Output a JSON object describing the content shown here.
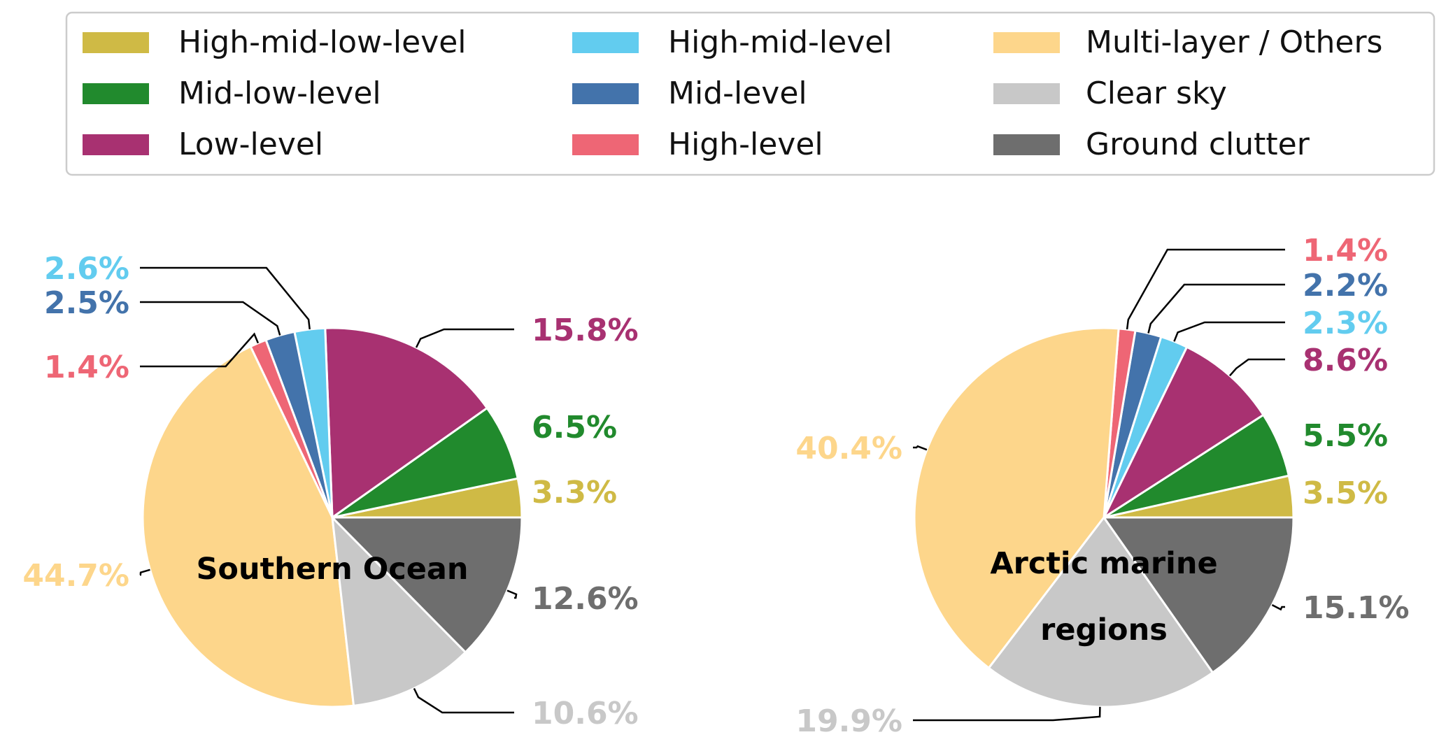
{
  "legend": {
    "items": [
      {
        "key": "hml",
        "label": "High-mid-low-level",
        "color": "#CFBA45"
      },
      {
        "key": "hm",
        "label": "High-mid-level",
        "color": "#62CCEF"
      },
      {
        "key": "multi",
        "label": "Multi-layer / Others",
        "color": "#FDD68B"
      },
      {
        "key": "ml",
        "label": "Mid-low-level",
        "color": "#218A2D"
      },
      {
        "key": "m",
        "label": "Mid-level",
        "color": "#4373AB"
      },
      {
        "key": "clear",
        "label": "Clear sky",
        "color": "#C8C8C8"
      },
      {
        "key": "l",
        "label": "Low-level",
        "color": "#A83171"
      },
      {
        "key": "h",
        "label": "High-level",
        "color": "#EE6675"
      },
      {
        "key": "ground",
        "label": "Ground clutter",
        "color": "#6E6E6E"
      }
    ]
  },
  "chart_data": [
    {
      "type": "pie",
      "title": "Southern Ocean",
      "title_lines": [
        "Southern Ocean"
      ],
      "start_angle_deg": 0,
      "direction": "counterclockwise",
      "slices": [
        {
          "key": "hml",
          "value": 3.3,
          "label": "3.3%"
        },
        {
          "key": "ml",
          "value": 6.5,
          "label": "6.5%"
        },
        {
          "key": "l",
          "value": 15.8,
          "label": "15.8%"
        },
        {
          "key": "hm",
          "value": 2.6,
          "label": "2.6%"
        },
        {
          "key": "m",
          "value": 2.5,
          "label": "2.5%"
        },
        {
          "key": "h",
          "value": 1.4,
          "label": "1.4%"
        },
        {
          "key": "multi",
          "value": 44.7,
          "label": "44.7%"
        },
        {
          "key": "clear",
          "value": 10.6,
          "label": "10.6%"
        },
        {
          "key": "ground",
          "value": 12.6,
          "label": "12.6%"
        }
      ]
    },
    {
      "type": "pie",
      "title": "Arctic marine regions",
      "title_lines": [
        "Arctic marine",
        "regions"
      ],
      "start_angle_deg": 0,
      "direction": "counterclockwise",
      "slices": [
        {
          "key": "hml",
          "value": 3.5,
          "label": "3.5%"
        },
        {
          "key": "ml",
          "value": 5.5,
          "label": "5.5%"
        },
        {
          "key": "l",
          "value": 8.6,
          "label": "8.6%"
        },
        {
          "key": "hm",
          "value": 2.3,
          "label": "2.3%"
        },
        {
          "key": "m",
          "value": 2.2,
          "label": "2.2%"
        },
        {
          "key": "h",
          "value": 1.4,
          "label": "1.4%"
        },
        {
          "key": "multi",
          "value": 40.4,
          "label": "40.4%"
        },
        {
          "key": "clear",
          "value": 19.9,
          "label": "19.9%"
        },
        {
          "key": "ground",
          "value": 15.1,
          "label": "15.1%"
        }
      ]
    }
  ]
}
